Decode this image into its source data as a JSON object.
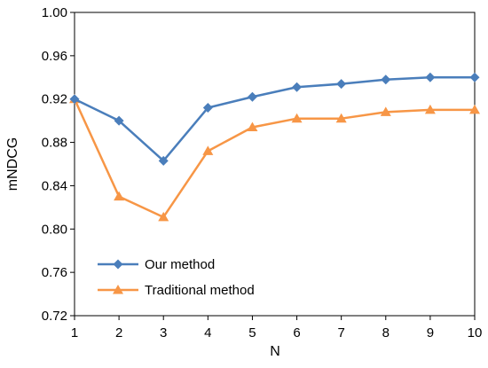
{
  "chart_data": {
    "type": "line",
    "title": "",
    "xlabel": "N",
    "ylabel": "mNDCG",
    "x": [
      1,
      2,
      3,
      4,
      5,
      6,
      7,
      8,
      9,
      10
    ],
    "xlim": [
      1,
      10
    ],
    "ylim": [
      0.72,
      1.0
    ],
    "yticks": [
      "0.72",
      "0.76",
      "0.80",
      "0.84",
      "0.88",
      "0.92",
      "0.96",
      "1.00"
    ],
    "xticks": [
      "1",
      "2",
      "3",
      "4",
      "5",
      "6",
      "7",
      "8",
      "9",
      "10"
    ],
    "grid": false,
    "legend_position": "bottom-left",
    "series": [
      {
        "name": "Our method",
        "color": "#4A7EBB",
        "marker": "diamond",
        "values": [
          0.92,
          0.9,
          0.863,
          0.912,
          0.922,
          0.931,
          0.934,
          0.938,
          0.94,
          0.94
        ]
      },
      {
        "name": "Traditional method",
        "color": "#F79646",
        "marker": "triangle",
        "values": [
          0.92,
          0.83,
          0.811,
          0.872,
          0.894,
          0.902,
          0.902,
          0.908,
          0.91,
          0.91
        ]
      }
    ]
  }
}
